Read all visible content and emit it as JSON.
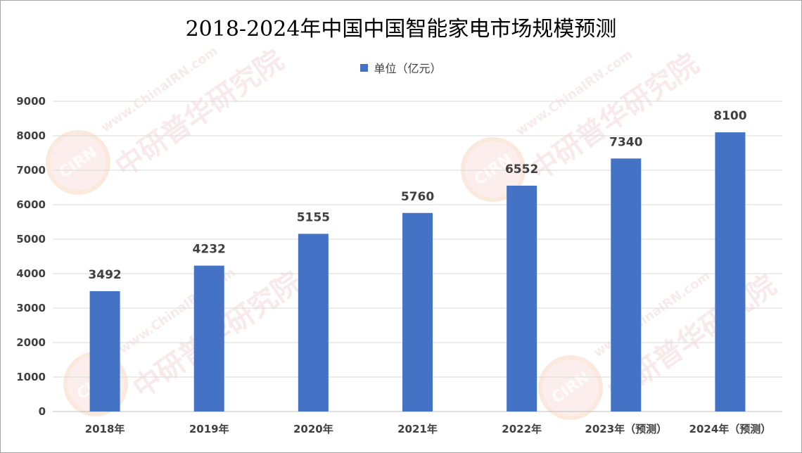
{
  "title": "2018-2024年中国中国智能家电市场规模预测",
  "legend": {
    "label": "单位（亿元）",
    "color": "#4472c4"
  },
  "watermark": {
    "text_cn": "中研普华研究院",
    "text_en": "www.ChinaIRN.com",
    "logo": "CIRN"
  },
  "chart_data": {
    "type": "bar",
    "title": "2018-2024年中国中国智能家电市场规模预测",
    "categories": [
      "2018年",
      "2019年",
      "2020年",
      "2021年",
      "2022年",
      "2023年（预测）",
      "2024年（预测）"
    ],
    "series": [
      {
        "name": "单位（亿元）",
        "values": [
          3492,
          4232,
          5155,
          5760,
          6552,
          7340,
          8100
        ],
        "color": "#4472c4"
      }
    ],
    "ylim": [
      0,
      9000
    ],
    "yticks": [
      0,
      1000,
      2000,
      3000,
      4000,
      5000,
      6000,
      7000,
      8000,
      9000
    ],
    "grid": true,
    "legend_position": "top-center",
    "data_labels": true,
    "colors": {
      "bar": "#4472c4",
      "grid": "#d9d9d9",
      "text": "#404040"
    }
  }
}
